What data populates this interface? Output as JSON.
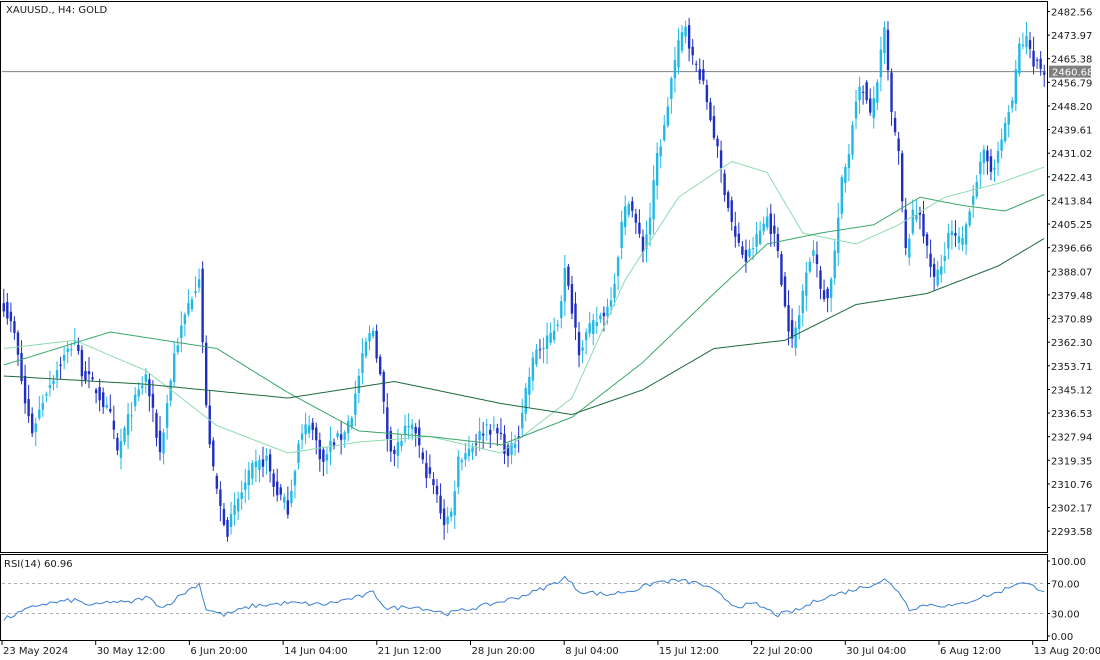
{
  "header": {
    "symbol": "XAUUSD.",
    "timeframe": "H4",
    "description": "GOLD",
    "title": "XAUUSD., H4:  GOLD"
  },
  "rsi_panel": {
    "label": "RSI(14) 60.96",
    "levels": [
      "100.00",
      "70.00",
      "30.00",
      "0.00"
    ]
  },
  "current_price_label": "2460.68",
  "colors": {
    "bull_candle": "#22b8e6",
    "bear_candle": "#1f2fc2",
    "ma_fast": "#8fdcb0",
    "ma_mid": "#3aa86a",
    "ma_slow": "#1d6a3c",
    "rsi_line": "#3a7fd6",
    "price_line": "#808080"
  },
  "chart_data": [
    {
      "type": "candlestick",
      "symbol": "XAUUSD.",
      "timeframe": "H4",
      "ylim": [
        2286,
        2486
      ],
      "y_ticks": [
        "2482.56",
        "2473.97",
        "2465.38",
        "2456.79",
        "2448.20",
        "2439.61",
        "2431.02",
        "2422.43",
        "2413.84",
        "2405.25",
        "2396.66",
        "2388.07",
        "2379.48",
        "2370.89",
        "2362.30",
        "2353.71",
        "2345.12",
        "2336.53",
        "2327.94",
        "2319.35",
        "2310.76",
        "2302.17",
        "2293.58"
      ],
      "x_ticks": [
        "23 May 2024",
        "30 May 12:00",
        "6 Jun 20:00",
        "14 Jun 04:00",
        "21 Jun 12:00",
        "28 Jun 20:00",
        "8 Jul 04:00",
        "15 Jul 12:00",
        "22 Jul 20:00",
        "30 Jul 04:00",
        "6 Aug 12:00",
        "13 Aug 20:00"
      ],
      "current_price": 2460.68,
      "price_waypoints": [
        [
          0,
          2376
        ],
        [
          3,
          2365
        ],
        [
          6,
          2340
        ],
        [
          8,
          2330
        ],
        [
          12,
          2345
        ],
        [
          16,
          2355
        ],
        [
          20,
          2363
        ],
        [
          22,
          2352
        ],
        [
          26,
          2345
        ],
        [
          30,
          2335
        ],
        [
          32,
          2322
        ],
        [
          36,
          2338
        ],
        [
          40,
          2350
        ],
        [
          42,
          2336
        ],
        [
          44,
          2322
        ],
        [
          46,
          2340
        ],
        [
          48,
          2358
        ],
        [
          52,
          2376
        ],
        [
          55,
          2387
        ],
        [
          57,
          2338
        ],
        [
          59,
          2315
        ],
        [
          61,
          2302
        ],
        [
          63,
          2294
        ],
        [
          66,
          2305
        ],
        [
          70,
          2316
        ],
        [
          74,
          2320
        ],
        [
          76,
          2310
        ],
        [
          80,
          2302
        ],
        [
          83,
          2325
        ],
        [
          86,
          2334
        ],
        [
          88,
          2326
        ],
        [
          90,
          2318
        ],
        [
          92,
          2325
        ],
        [
          95,
          2328
        ],
        [
          98,
          2336
        ],
        [
          100,
          2350
        ],
        [
          102,
          2362
        ],
        [
          104,
          2367
        ],
        [
          106,
          2350
        ],
        [
          108,
          2328
        ],
        [
          110,
          2322
        ],
        [
          113,
          2330
        ],
        [
          116,
          2330
        ],
        [
          118,
          2318
        ],
        [
          121,
          2310
        ],
        [
          124,
          2297
        ],
        [
          126,
          2300
        ],
        [
          128,
          2320
        ],
        [
          132,
          2325
        ],
        [
          136,
          2332
        ],
        [
          140,
          2328
        ],
        [
          142,
          2320
        ],
        [
          145,
          2330
        ],
        [
          147,
          2345
        ],
        [
          150,
          2360
        ],
        [
          152,
          2360
        ],
        [
          156,
          2370
        ],
        [
          158,
          2388
        ],
        [
          160,
          2375
        ],
        [
          162,
          2360
        ],
        [
          164,
          2365
        ],
        [
          167,
          2370
        ],
        [
          170,
          2375
        ],
        [
          172,
          2385
        ],
        [
          174,
          2405
        ],
        [
          176,
          2415
        ],
        [
          178,
          2405
        ],
        [
          180,
          2396
        ],
        [
          182,
          2408
        ],
        [
          184,
          2430
        ],
        [
          186,
          2440
        ],
        [
          188,
          2458
        ],
        [
          190,
          2470
        ],
        [
          192,
          2478
        ],
        [
          194,
          2465
        ],
        [
          196,
          2460
        ],
        [
          198,
          2450
        ],
        [
          200,
          2438
        ],
        [
          203,
          2418
        ],
        [
          206,
          2400
        ],
        [
          209,
          2392
        ],
        [
          212,
          2400
        ],
        [
          215,
          2408
        ],
        [
          218,
          2396
        ],
        [
          220,
          2375
        ],
        [
          222,
          2362
        ],
        [
          224,
          2372
        ],
        [
          226,
          2390
        ],
        [
          228,
          2396
        ],
        [
          230,
          2382
        ],
        [
          232,
          2378
        ],
        [
          234,
          2395
        ],
        [
          236,
          2420
        ],
        [
          238,
          2432
        ],
        [
          240,
          2452
        ],
        [
          242,
          2455
        ],
        [
          244,
          2444
        ],
        [
          246,
          2458
        ],
        [
          248,
          2475
        ],
        [
          250,
          2445
        ],
        [
          252,
          2430
        ],
        [
          254,
          2395
        ],
        [
          256,
          2408
        ],
        [
          258,
          2410
        ],
        [
          260,
          2395
        ],
        [
          262,
          2385
        ],
        [
          264,
          2390
        ],
        [
          266,
          2402
        ],
        [
          268,
          2400
        ],
        [
          270,
          2398
        ],
        [
          272,
          2412
        ],
        [
          274,
          2422
        ],
        [
          276,
          2430
        ],
        [
          278,
          2426
        ],
        [
          280,
          2430
        ],
        [
          282,
          2442
        ],
        [
          284,
          2450
        ],
        [
          286,
          2470
        ],
        [
          288,
          2472
        ],
        [
          290,
          2465
        ],
        [
          292,
          2462
        ],
        [
          293,
          2461
        ]
      ],
      "moving_averages": [
        {
          "label": "MA fast",
          "waypoints": [
            [
              0,
              2360
            ],
            [
              20,
              2363
            ],
            [
              40,
              2352
            ],
            [
              60,
              2332
            ],
            [
              80,
              2322
            ],
            [
              100,
              2326
            ],
            [
              120,
              2328
            ],
            [
              140,
              2322
            ],
            [
              160,
              2342
            ],
            [
              175,
              2385
            ],
            [
              190,
              2415
            ],
            [
              205,
              2428
            ],
            [
              215,
              2424
            ],
            [
              225,
              2402
            ],
            [
              240,
              2398
            ],
            [
              252,
              2405
            ],
            [
              265,
              2415
            ],
            [
              280,
              2420
            ],
            [
              293,
              2426
            ]
          ]
        },
        {
          "label": "MA mid",
          "waypoints": [
            [
              0,
              2354
            ],
            [
              30,
              2366
            ],
            [
              60,
              2360
            ],
            [
              80,
              2344
            ],
            [
              100,
              2330
            ],
            [
              120,
              2328
            ],
            [
              140,
              2325
            ],
            [
              160,
              2335
            ],
            [
              180,
              2355
            ],
            [
              200,
              2380
            ],
            [
              215,
              2398
            ],
            [
              230,
              2402
            ],
            [
              245,
              2405
            ],
            [
              258,
              2415
            ],
            [
              270,
              2412
            ],
            [
              282,
              2410
            ],
            [
              293,
              2416
            ]
          ]
        },
        {
          "label": "MA slow",
          "waypoints": [
            [
              0,
              2350
            ],
            [
              40,
              2347
            ],
            [
              80,
              2342
            ],
            [
              110,
              2348
            ],
            [
              140,
              2340
            ],
            [
              160,
              2336
            ],
            [
              180,
              2345
            ],
            [
              200,
              2360
            ],
            [
              220,
              2363
            ],
            [
              240,
              2376
            ],
            [
              260,
              2380
            ],
            [
              280,
              2390
            ],
            [
              293,
              2400
            ]
          ]
        }
      ]
    },
    {
      "type": "line",
      "name": "RSI(14)",
      "last_value": 60.96,
      "ylim": [
        0,
        100
      ],
      "levels": [
        70,
        30
      ],
      "waypoints": [
        [
          0,
          22
        ],
        [
          5,
          32
        ],
        [
          10,
          42
        ],
        [
          15,
          45
        ],
        [
          20,
          48
        ],
        [
          25,
          40
        ],
        [
          30,
          46
        ],
        [
          35,
          44
        ],
        [
          40,
          52
        ],
        [
          45,
          38
        ],
        [
          50,
          55
        ],
        [
          55,
          70
        ],
        [
          57,
          36
        ],
        [
          62,
          28
        ],
        [
          70,
          40
        ],
        [
          80,
          44
        ],
        [
          90,
          42
        ],
        [
          100,
          52
        ],
        [
          104,
          58
        ],
        [
          108,
          36
        ],
        [
          115,
          40
        ],
        [
          125,
          30
        ],
        [
          135,
          40
        ],
        [
          145,
          52
        ],
        [
          150,
          60
        ],
        [
          155,
          70
        ],
        [
          158,
          78
        ],
        [
          162,
          60
        ],
        [
          170,
          55
        ],
        [
          178,
          62
        ],
        [
          184,
          72
        ],
        [
          190,
          74
        ],
        [
          196,
          70
        ],
        [
          200,
          60
        ],
        [
          206,
          40
        ],
        [
          212,
          42
        ],
        [
          218,
          28
        ],
        [
          224,
          35
        ],
        [
          230,
          50
        ],
        [
          238,
          60
        ],
        [
          244,
          68
        ],
        [
          248,
          75
        ],
        [
          252,
          60
        ],
        [
          255,
          36
        ],
        [
          260,
          42
        ],
        [
          268,
          40
        ],
        [
          274,
          50
        ],
        [
          280,
          58
        ],
        [
          286,
          72
        ],
        [
          290,
          66
        ],
        [
          293,
          61
        ]
      ]
    }
  ]
}
